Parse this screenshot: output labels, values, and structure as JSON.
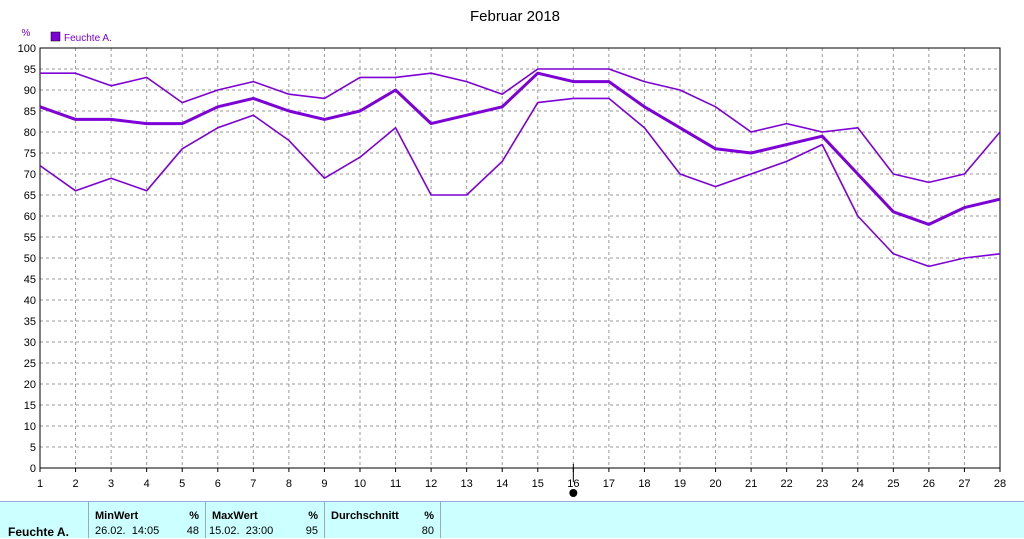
{
  "chart_data": {
    "type": "line",
    "title": "Februar 2018",
    "y_unit_label": "%",
    "ylim": [
      0,
      100
    ],
    "y_ticks": [
      0,
      5,
      10,
      15,
      20,
      25,
      30,
      35,
      40,
      45,
      50,
      55,
      60,
      65,
      70,
      75,
      80,
      85,
      90,
      95,
      100
    ],
    "x": [
      1,
      2,
      3,
      4,
      5,
      6,
      7,
      8,
      9,
      10,
      11,
      12,
      13,
      14,
      15,
      16,
      17,
      18,
      19,
      20,
      21,
      22,
      23,
      24,
      25,
      26,
      27,
      28
    ],
    "legend": {
      "label": "Feuchte A.",
      "color": "#7d00d6",
      "placement": "top-left"
    },
    "grid": true,
    "today_marker_x": 16,
    "series": [
      {
        "kind": "max",
        "values": [
          94,
          94,
          91,
          93,
          87,
          90,
          92,
          89,
          88,
          93,
          93,
          94,
          92,
          89,
          95,
          95,
          95,
          92,
          90,
          86,
          80,
          82,
          80,
          81,
          70,
          68,
          70,
          80
        ]
      },
      {
        "kind": "avg",
        "values": [
          86,
          83,
          83,
          82,
          82,
          86,
          88,
          85,
          83,
          85,
          90,
          82,
          84,
          86,
          94,
          92,
          92,
          86,
          81,
          76,
          75,
          77,
          79,
          70,
          61,
          58,
          62,
          64
        ]
      },
      {
        "kind": "min",
        "values": [
          72,
          66,
          69,
          66,
          76,
          81,
          84,
          78,
          69,
          74,
          81,
          65,
          65,
          73,
          87,
          88,
          88,
          81,
          70,
          67,
          70,
          73,
          77,
          60,
          51,
          48,
          50,
          51
        ]
      }
    ]
  },
  "stats": {
    "row_label": "Feuchte A.",
    "min": {
      "header": "MinWert",
      "unit": "%",
      "time": "26.02.  14:05",
      "value": "48"
    },
    "max": {
      "header": "MaxWert",
      "unit": "%",
      "time": "15.02.  23:00",
      "value": "95"
    },
    "avg": {
      "header": "Durchschnitt",
      "unit": "%",
      "value": "80"
    }
  }
}
